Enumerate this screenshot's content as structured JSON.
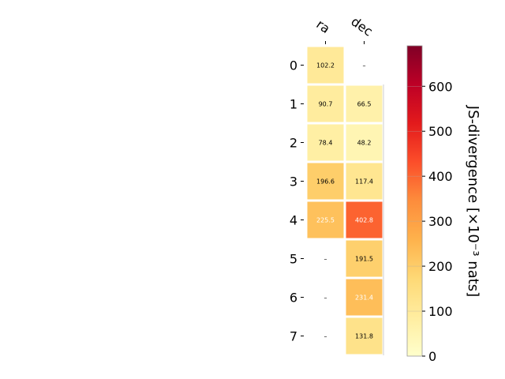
{
  "chart_data": {
    "type": "heatmap",
    "columns": [
      "ra",
      "dec"
    ],
    "rows": [
      "0",
      "1",
      "2",
      "3",
      "4",
      "5",
      "6",
      "7"
    ],
    "values": [
      [
        102.2,
        null
      ],
      [
        90.7,
        66.5
      ],
      [
        78.4,
        48.2
      ],
      [
        196.6,
        117.4
      ],
      [
        225.5,
        402.8
      ],
      [
        null,
        191.5
      ],
      [
        null,
        231.4
      ],
      [
        null,
        131.8
      ]
    ],
    "cell_labels": [
      [
        "102.2",
        "–"
      ],
      [
        "90.7",
        "66.5"
      ],
      [
        "78.4",
        "48.2"
      ],
      [
        "196.6",
        "117.4"
      ],
      [
        "225.5",
        "402.8"
      ],
      [
        "–",
        "191.5"
      ],
      [
        "–",
        "231.4"
      ],
      [
        "–",
        "131.8"
      ]
    ],
    "colorbar": {
      "label": "JS-divergence [×10⁻³ nats]",
      "range": [
        0,
        690
      ],
      "ticks": [
        "0",
        "100",
        "200",
        "300",
        "400",
        "500",
        "600"
      ],
      "colormap": "YlOrRd"
    }
  }
}
